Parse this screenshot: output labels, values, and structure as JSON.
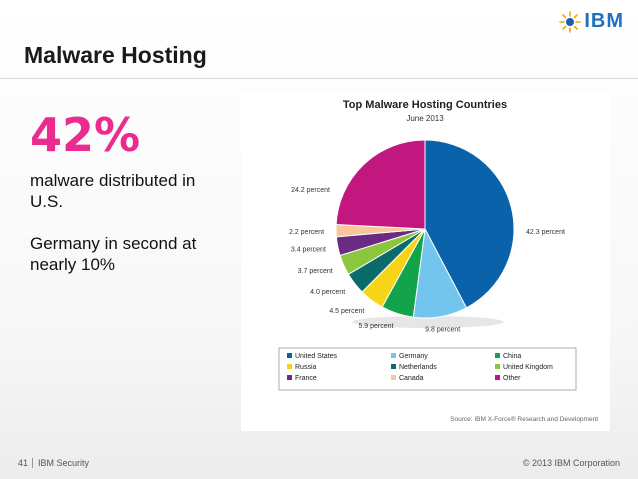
{
  "logo": {
    "text": "IBM",
    "mark": "smarter-planet-icon"
  },
  "slide": {
    "title": "Malware Hosting",
    "headline": "42%",
    "lines": [
      "malware distributed in U.S.",
      "Germany in second at nearly 10%"
    ]
  },
  "chart_data": {
    "type": "pie",
    "title": "Top Malware Hosting Countries",
    "subtitle": "June 2013",
    "source": "Source: IBM X-Force® Research and Development",
    "slices": [
      {
        "label": "United States",
        "value": 42.3,
        "text": "42.3 percent",
        "color": "#0a62ab"
      },
      {
        "label": "Germany",
        "value": 9.8,
        "text": "9.8 percent",
        "color": "#74c5ee"
      },
      {
        "label": "China",
        "value": 5.9,
        "text": "5.9 percent",
        "color": "#13a34a"
      },
      {
        "label": "Russia",
        "value": 4.5,
        "text": "4.5 percent",
        "color": "#f7d417"
      },
      {
        "label": "Netherlands",
        "value": 4.0,
        "text": "4.0 percent",
        "color": "#0a6b6b"
      },
      {
        "label": "United Kingdom",
        "value": 3.7,
        "text": "3.7 percent",
        "color": "#8cc63f"
      },
      {
        "label": "France",
        "value": 3.4,
        "text": "3.4 percent",
        "color": "#6b2a83"
      },
      {
        "label": "Canada",
        "value": 2.2,
        "text": "2.2 percent",
        "color": "#f9c79a"
      },
      {
        "label": "Other",
        "value": 24.2,
        "text": "24.2 percent",
        "color": "#c1177f"
      }
    ],
    "legend_order": [
      "United States",
      "Germany",
      "China",
      "Russia",
      "Netherlands",
      "United Kingdom",
      "France",
      "Canada",
      "Other"
    ],
    "legend_placement": "bottom"
  },
  "footer": {
    "page": "41",
    "section": "IBM Security",
    "copyright": "© 2013 IBM Corporation"
  }
}
